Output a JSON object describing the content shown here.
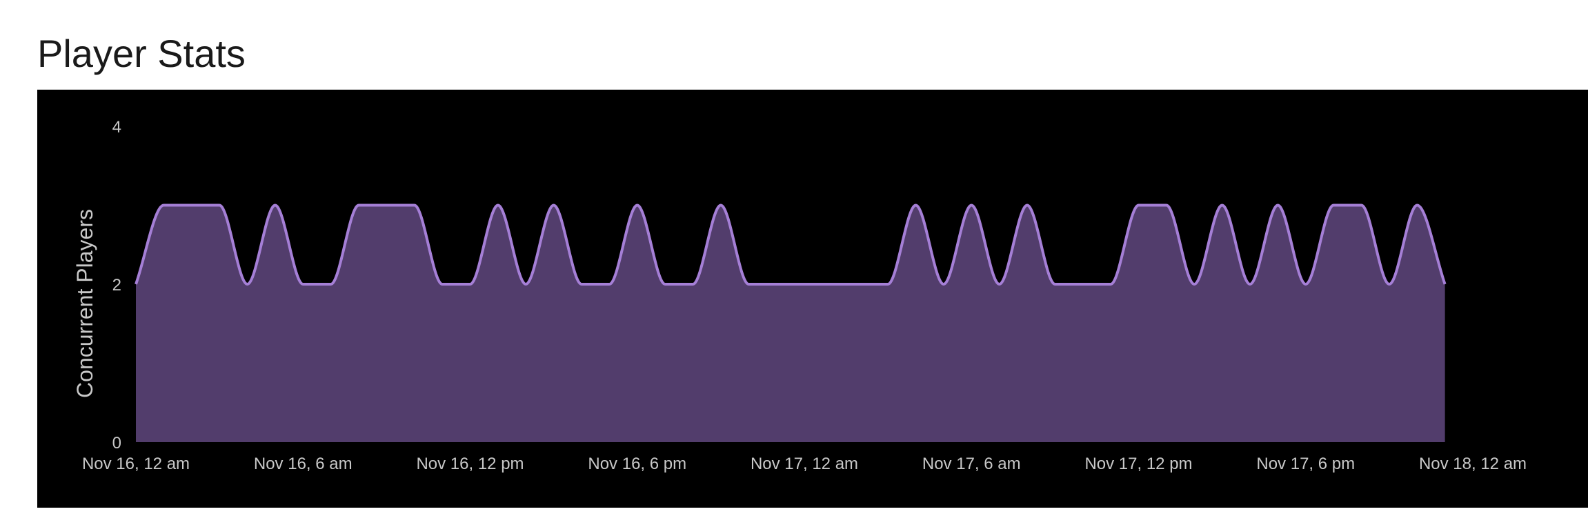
{
  "page": {
    "title": "Player Stats"
  },
  "chart_data": {
    "type": "area",
    "title": "",
    "ylabel": "Concurrent Players",
    "xlabel": "",
    "ylim": [
      0,
      4
    ],
    "y_ticks": [
      0,
      2,
      4
    ],
    "x_range": [
      "Nov 16, 12 am",
      "Nov 18, 12 am"
    ],
    "x_tick_labels": [
      "Nov 16, 12 am",
      "Nov 16, 6 am",
      "Nov 16, 12 pm",
      "Nov 16, 6 pm",
      "Nov 17, 12 am",
      "Nov 17, 6 am",
      "Nov 17, 12 pm",
      "Nov 17, 6 pm",
      "Nov 18, 12 am"
    ],
    "series": [
      {
        "points": [
          {
            "x": "Nov 16, 12 am",
            "y": 2
          },
          {
            "x": "Nov 16, 1 am",
            "y": 3
          },
          {
            "x": "Nov 16, 2 am",
            "y": 3
          },
          {
            "x": "Nov 16, 3 am",
            "y": 3
          },
          {
            "x": "Nov 16, 4 am",
            "y": 2
          },
          {
            "x": "Nov 16, 5 am",
            "y": 3
          },
          {
            "x": "Nov 16, 6 am",
            "y": 2
          },
          {
            "x": "Nov 16, 7 am",
            "y": 2
          },
          {
            "x": "Nov 16, 8 am",
            "y": 3
          },
          {
            "x": "Nov 16, 9 am",
            "y": 3
          },
          {
            "x": "Nov 16, 10 am",
            "y": 3
          },
          {
            "x": "Nov 16, 11 am",
            "y": 2
          },
          {
            "x": "Nov 16, 12 pm",
            "y": 2
          },
          {
            "x": "Nov 16, 1 pm",
            "y": 3
          },
          {
            "x": "Nov 16, 2 pm",
            "y": 2
          },
          {
            "x": "Nov 16, 3 pm",
            "y": 3
          },
          {
            "x": "Nov 16, 4 pm",
            "y": 2
          },
          {
            "x": "Nov 16, 5 pm",
            "y": 2
          },
          {
            "x": "Nov 16, 6 pm",
            "y": 3
          },
          {
            "x": "Nov 16, 7 pm",
            "y": 2
          },
          {
            "x": "Nov 16, 8 pm",
            "y": 2
          },
          {
            "x": "Nov 16, 9 pm",
            "y": 3
          },
          {
            "x": "Nov 16, 10 pm",
            "y": 2
          },
          {
            "x": "Nov 16, 11 pm",
            "y": 2
          },
          {
            "x": "Nov 17, 12 am",
            "y": 2
          },
          {
            "x": "Nov 17, 1 am",
            "y": 2
          },
          {
            "x": "Nov 17, 2 am",
            "y": 2
          },
          {
            "x": "Nov 17, 3 am",
            "y": 2
          },
          {
            "x": "Nov 17, 4 am",
            "y": 3
          },
          {
            "x": "Nov 17, 5 am",
            "y": 2
          },
          {
            "x": "Nov 17, 6 am",
            "y": 3
          },
          {
            "x": "Nov 17, 7 am",
            "y": 2
          },
          {
            "x": "Nov 17, 8 am",
            "y": 3
          },
          {
            "x": "Nov 17, 9 am",
            "y": 2
          },
          {
            "x": "Nov 17, 10 am",
            "y": 2
          },
          {
            "x": "Nov 17, 11 am",
            "y": 2
          },
          {
            "x": "Nov 17, 12 pm",
            "y": 3
          },
          {
            "x": "Nov 17, 1 pm",
            "y": 3
          },
          {
            "x": "Nov 17, 2 pm",
            "y": 2
          },
          {
            "x": "Nov 17, 3 pm",
            "y": 3
          },
          {
            "x": "Nov 17, 4 pm",
            "y": 2
          },
          {
            "x": "Nov 17, 5 pm",
            "y": 3
          },
          {
            "x": "Nov 17, 6 pm",
            "y": 2
          },
          {
            "x": "Nov 17, 7 pm",
            "y": 3
          },
          {
            "x": "Nov 17, 8 pm",
            "y": 3
          },
          {
            "x": "Nov 17, 9 pm",
            "y": 2
          },
          {
            "x": "Nov 17, 10 pm",
            "y": 3
          },
          {
            "x": "Nov 17, 11 pm",
            "y": 2
          }
        ]
      }
    ],
    "colors": {
      "background": "#000000",
      "area_fill": "#523d6c",
      "line": "#a57fd6",
      "text": "#c8c8c8"
    },
    "grid": false,
    "legend": "none"
  }
}
